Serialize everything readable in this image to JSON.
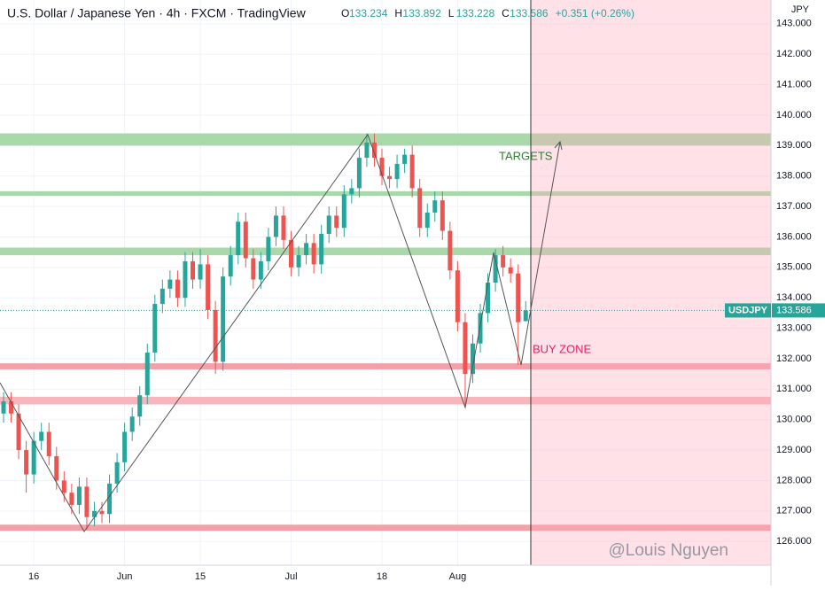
{
  "chart_data": {
    "type": "candlestick",
    "title": "U.S. Dollar / Japanese Yen · 4h · FXCM · TradingView",
    "ohlc_header": [
      {
        "label": "O",
        "value": 133.234
      },
      {
        "label": "H",
        "value": 133.892
      },
      {
        "label": "L",
        "value": 133.228
      },
      {
        "label": "C",
        "value": 133.586
      }
    ],
    "change": "+0.351 (+0.26%)",
    "currency": "JPY",
    "symbol": "USDJPY",
    "last_price": {
      "value": 133.586,
      "label": "133.586"
    },
    "up_color": "#26a69a",
    "down_color": "#ef5350",
    "categories": [
      null,
      null,
      null,
      null,
      "16",
      null,
      null,
      null,
      null,
      null,
      null,
      null,
      null,
      null,
      null,
      null,
      "Jun",
      null,
      null,
      null,
      null,
      null,
      null,
      null,
      null,
      null,
      "15",
      null,
      null,
      null,
      null,
      null,
      null,
      null,
      null,
      null,
      null,
      null,
      "Jul",
      null,
      null,
      null,
      null,
      null,
      null,
      null,
      null,
      null,
      null,
      null,
      "18",
      null,
      null,
      null,
      null,
      null,
      null,
      null,
      null,
      null,
      "Aug",
      null,
      null,
      null,
      null,
      null,
      null,
      null,
      null,
      null
    ],
    "ohlc": [
      [
        130.2,
        130.9,
        129.9,
        130.6
      ],
      [
        130.6,
        130.9,
        129.9,
        130.2
      ],
      [
        130.2,
        130.5,
        128.7,
        129.0
      ],
      [
        129.0,
        129.3,
        127.6,
        128.2
      ],
      [
        128.2,
        129.6,
        127.9,
        129.3
      ],
      [
        129.3,
        129.9,
        129.0,
        129.6
      ],
      [
        129.6,
        129.9,
        128.5,
        128.8
      ],
      [
        128.8,
        129.1,
        127.7,
        128.0
      ],
      [
        128.0,
        128.3,
        127.3,
        127.6
      ],
      [
        127.6,
        127.9,
        126.9,
        127.2
      ],
      [
        127.2,
        128.1,
        126.9,
        127.8
      ],
      [
        127.8,
        128.1,
        126.4,
        126.8
      ],
      [
        126.8,
        127.3,
        126.5,
        127.0
      ],
      [
        127.0,
        127.3,
        126.6,
        126.9
      ],
      [
        126.9,
        128.2,
        126.6,
        127.9
      ],
      [
        127.9,
        128.9,
        127.6,
        128.6
      ],
      [
        128.6,
        129.9,
        128.3,
        129.6
      ],
      [
        129.6,
        130.4,
        129.3,
        130.1
      ],
      [
        130.1,
        131.1,
        129.8,
        130.8
      ],
      [
        130.8,
        132.5,
        130.5,
        132.2
      ],
      [
        132.2,
        134.1,
        131.9,
        133.8
      ],
      [
        133.8,
        134.6,
        133.5,
        134.3
      ],
      [
        134.3,
        134.9,
        134.0,
        134.6
      ],
      [
        134.6,
        134.9,
        133.7,
        134.0
      ],
      [
        134.0,
        135.5,
        133.7,
        135.2
      ],
      [
        135.2,
        135.5,
        134.3,
        134.6
      ],
      [
        134.6,
        135.6,
        134.3,
        135.1
      ],
      [
        135.1,
        135.4,
        133.3,
        133.6
      ],
      [
        133.6,
        133.9,
        131.5,
        131.9
      ],
      [
        131.9,
        135.0,
        131.6,
        134.7
      ],
      [
        134.7,
        135.7,
        134.4,
        135.4
      ],
      [
        135.4,
        136.8,
        135.1,
        136.5
      ],
      [
        136.5,
        136.8,
        135.0,
        135.3
      ],
      [
        135.3,
        135.6,
        134.3,
        134.6
      ],
      [
        134.6,
        135.5,
        134.3,
        135.2
      ],
      [
        135.2,
        136.3,
        134.9,
        136.0
      ],
      [
        136.0,
        137.0,
        135.7,
        136.7
      ],
      [
        136.7,
        137.0,
        135.6,
        135.9
      ],
      [
        135.9,
        136.2,
        134.7,
        135.0
      ],
      [
        135.0,
        135.7,
        134.7,
        135.4
      ],
      [
        135.4,
        136.1,
        135.1,
        135.8
      ],
      [
        135.8,
        136.1,
        134.8,
        135.1
      ],
      [
        135.1,
        136.4,
        134.8,
        136.1
      ],
      [
        136.1,
        137.0,
        135.8,
        136.7
      ],
      [
        136.7,
        137.0,
        136.0,
        136.3
      ],
      [
        136.3,
        137.7,
        136.0,
        137.4
      ],
      [
        137.4,
        137.9,
        137.1,
        137.6
      ],
      [
        137.6,
        138.9,
        137.3,
        138.6
      ],
      [
        138.6,
        139.4,
        138.3,
        139.1
      ],
      [
        139.1,
        139.4,
        138.3,
        138.6
      ],
      [
        138.6,
        138.9,
        137.7,
        138.0
      ],
      [
        138.0,
        138.3,
        137.6,
        137.9
      ],
      [
        137.9,
        138.7,
        137.6,
        138.4
      ],
      [
        138.4,
        138.9,
        138.1,
        138.7
      ],
      [
        138.7,
        139.0,
        137.3,
        137.6
      ],
      [
        137.6,
        137.9,
        136.0,
        136.3
      ],
      [
        136.3,
        137.1,
        136.0,
        136.8
      ],
      [
        136.8,
        137.5,
        136.5,
        137.2
      ],
      [
        137.2,
        137.5,
        135.9,
        136.2
      ],
      [
        136.2,
        136.5,
        134.6,
        134.9
      ],
      [
        134.9,
        135.2,
        132.9,
        133.2
      ],
      [
        133.2,
        133.5,
        130.4,
        131.5
      ],
      [
        131.5,
        132.8,
        131.2,
        132.5
      ],
      [
        132.5,
        133.8,
        132.2,
        133.5
      ],
      [
        133.5,
        134.8,
        133.2,
        134.5
      ],
      [
        134.5,
        135.6,
        134.2,
        135.4
      ],
      [
        135.4,
        135.7,
        134.7,
        135.0
      ],
      [
        135.0,
        135.3,
        134.5,
        134.8
      ],
      [
        134.8,
        135.1,
        131.8,
        133.2
      ],
      [
        133.234,
        133.892,
        133.228,
        133.586
      ]
    ],
    "zones": [
      {
        "from": 139.0,
        "to": 139.4,
        "color": "#a9d9ab"
      },
      {
        "from": 137.35,
        "to": 137.5,
        "color": "#a9d9ab"
      },
      {
        "from": 135.4,
        "to": 135.65,
        "color": "#a9d9ab"
      },
      {
        "from": 131.65,
        "to": 131.85,
        "color": "#f2a1a8"
      },
      {
        "from": 130.5,
        "to": 130.75,
        "color": "#f6b6bc"
      },
      {
        "from": 126.35,
        "to": 126.55,
        "color": "#f2a1a8"
      }
    ],
    "annotations": [
      {
        "text": "TARGETS",
        "color": "#2e7d32"
      },
      {
        "text": "BUY ZONE",
        "color": "#e91e63"
      }
    ],
    "watermark": "@Louis Nguyen",
    "ylim": [
      125.22,
      143.78
    ],
    "yticks": [
      {
        "value": 126,
        "label": "126.000"
      },
      {
        "value": 127,
        "label": "127.000"
      },
      {
        "value": 128,
        "label": "128.000"
      },
      {
        "value": 129,
        "label": "129.000"
      },
      {
        "value": 130,
        "label": "130.000"
      },
      {
        "value": 131,
        "label": "131.000"
      },
      {
        "value": 132,
        "label": "132.000"
      },
      {
        "value": 133,
        "label": "133.000"
      },
      {
        "value": 134,
        "label": "134.000"
      },
      {
        "value": 135,
        "label": "135.000"
      },
      {
        "value": 136,
        "label": "136.000"
      },
      {
        "value": 137,
        "label": "137.000"
      },
      {
        "value": 138,
        "label": "138.000"
      },
      {
        "value": 139,
        "label": "139.000"
      },
      {
        "value": 140,
        "label": "140.000"
      },
      {
        "value": 141,
        "label": "141.000"
      },
      {
        "value": 142,
        "label": "142.000"
      },
      {
        "value": 143,
        "label": "143.000"
      }
    ],
    "grid": true
  }
}
